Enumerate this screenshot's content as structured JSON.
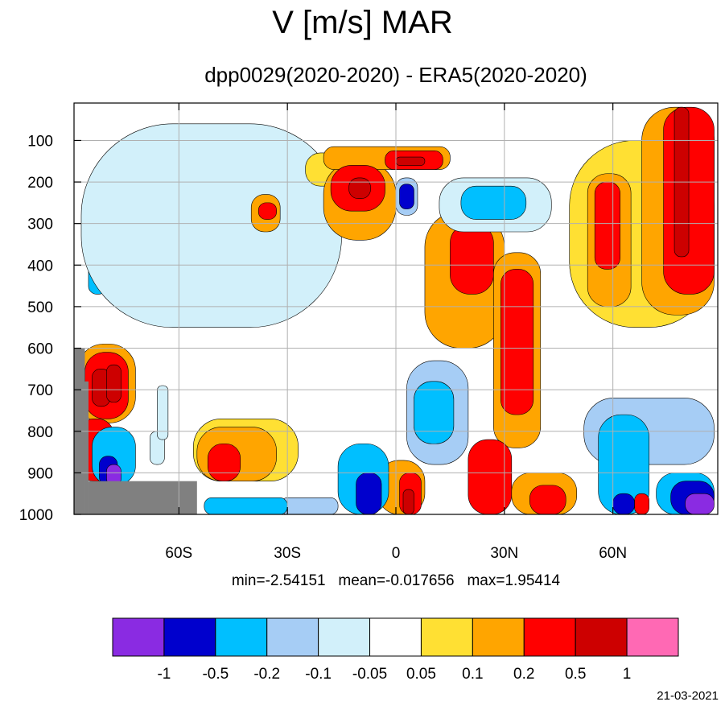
{
  "chart_data": {
    "type": "heatmap",
    "title": "V [m/s] MAR",
    "subtitle": "dpp0029(2020-2020) - ERA5(2020-2020)",
    "x_ticks": [
      "60S",
      "30S",
      "0",
      "30N",
      "60N"
    ],
    "x_tick_values": [
      -60,
      -30,
      0,
      30,
      60
    ],
    "y_ticks": [
      "100",
      "200",
      "300",
      "400",
      "500",
      "600",
      "700",
      "800",
      "900",
      "1000"
    ],
    "y_tick_values": [
      100,
      200,
      300,
      400,
      500,
      600,
      700,
      800,
      900,
      1000
    ],
    "xlim": [
      -89,
      89
    ],
    "ylim": [
      1000,
      10
    ],
    "grid": true,
    "stats": {
      "min": "-2.54151",
      "mean": "-0.017656",
      "max": "1.95414"
    },
    "stats_text": "min=-2.54151   mean=-0.017656   max=1.95414",
    "colorbar": {
      "levels": [
        "-1",
        "-0.5",
        "-0.2",
        "-0.1",
        "-0.05",
        "0.05",
        "0.1",
        "0.2",
        "0.5",
        "1"
      ],
      "colors": [
        "#8a2be2",
        "#0000cd",
        "#00bfff",
        "#a6cdf5",
        "#d2f0fa",
        "#ffffff",
        "#ffe033",
        "#ffa500",
        "#ff0000",
        "#cd0000",
        "#ff69b4"
      ]
    },
    "missing_color": "#808080",
    "cells": [
      {
        "lat": [
          -85,
          -80
        ],
        "p": [
          270,
          470
        ],
        "level": -0.2
      },
      {
        "lat": [
          -68,
          -50
        ],
        "p": [
          215,
          285
        ],
        "level": -0.2
      },
      {
        "lat": [
          -78,
          -40
        ],
        "p": [
          170,
          370
        ],
        "level": -0.1
      },
      {
        "lat": [
          -87,
          -15
        ],
        "p": [
          60,
          550
        ],
        "level": -0.05
      },
      {
        "lat": [
          -40,
          -32
        ],
        "p": [
          230,
          320
        ],
        "level": 0.1
      },
      {
        "lat": [
          -38,
          -33
        ],
        "p": [
          250,
          290
        ],
        "level": 0.2
      },
      {
        "lat": [
          -25,
          -15
        ],
        "p": [
          130,
          210
        ],
        "level": 0.05
      },
      {
        "lat": [
          -20,
          0
        ],
        "p": [
          150,
          340
        ],
        "level": 0.1
      },
      {
        "lat": [
          -20,
          15
        ],
        "p": [
          115,
          170
        ],
        "level": 0.1
      },
      {
        "lat": [
          -18,
          -3
        ],
        "p": [
          160,
          270
        ],
        "level": 0.2
      },
      {
        "lat": [
          -13,
          -7
        ],
        "p": [
          190,
          240
        ],
        "level": 0.5
      },
      {
        "lat": [
          -3,
          13
        ],
        "p": [
          125,
          170
        ],
        "level": 0.2
      },
      {
        "lat": [
          0,
          8
        ],
        "p": [
          140,
          160
        ],
        "level": 0.5
      },
      {
        "lat": [
          0,
          6
        ],
        "p": [
          190,
          280
        ],
        "level": -0.1
      },
      {
        "lat": [
          1,
          5
        ],
        "p": [
          205,
          265
        ],
        "level": -0.5
      },
      {
        "lat": [
          8,
          30
        ],
        "p": [
          270,
          600
        ],
        "level": 0.1
      },
      {
        "lat": [
          15,
          27
        ],
        "p": [
          300,
          470
        ],
        "level": 0.2
      },
      {
        "lat": [
          27,
          40
        ],
        "p": [
          370,
          840
        ],
        "level": 0.1
      },
      {
        "lat": [
          29,
          38
        ],
        "p": [
          410,
          760
        ],
        "level": 0.2
      },
      {
        "lat": [
          12,
          43
        ],
        "p": [
          190,
          320
        ],
        "level": -0.05
      },
      {
        "lat": [
          18,
          36
        ],
        "p": [
          210,
          290
        ],
        "level": -0.2
      },
      {
        "lat": [
          48,
          88
        ],
        "p": [
          100,
          550
        ],
        "level": 0.05
      },
      {
        "lat": [
          53,
          65
        ],
        "p": [
          180,
          500
        ],
        "level": 0.1
      },
      {
        "lat": [
          55,
          62
        ],
        "p": [
          200,
          410
        ],
        "level": 0.2
      },
      {
        "lat": [
          68,
          88
        ],
        "p": [
          20,
          520
        ],
        "level": 0.1
      },
      {
        "lat": [
          74,
          88
        ],
        "p": [
          20,
          470
        ],
        "level": 0.2
      },
      {
        "lat": [
          77,
          81
        ],
        "p": [
          20,
          380
        ],
        "level": 0.5
      },
      {
        "lat": [
          3,
          20
        ],
        "p": [
          630,
          880
        ],
        "level": -0.1
      },
      {
        "lat": [
          5,
          16
        ],
        "p": [
          680,
          830
        ],
        "level": -0.2
      },
      {
        "lat": [
          20,
          32
        ],
        "p": [
          820,
          1000
        ],
        "level": 0.2
      },
      {
        "lat": [
          32,
          50
        ],
        "p": [
          900,
          1000
        ],
        "level": 0.1
      },
      {
        "lat": [
          37,
          47
        ],
        "p": [
          930,
          1000
        ],
        "level": 0.2
      },
      {
        "lat": [
          -5,
          8
        ],
        "p": [
          870,
          1000
        ],
        "level": 0.1
      },
      {
        "lat": [
          1,
          7
        ],
        "p": [
          900,
          1000
        ],
        "level": 0.2
      },
      {
        "lat": [
          2,
          5
        ],
        "p": [
          940,
          1000
        ],
        "level": 0.5
      },
      {
        "lat": [
          -16,
          -2
        ],
        "p": [
          830,
          1000
        ],
        "level": -0.2
      },
      {
        "lat": [
          -11,
          -4
        ],
        "p": [
          900,
          1000
        ],
        "level": -0.5
      },
      {
        "lat": [
          -32,
          -16
        ],
        "p": [
          960,
          1000
        ],
        "level": -0.1
      },
      {
        "lat": [
          -56,
          -27
        ],
        "p": [
          770,
          920
        ],
        "level": 0.05
      },
      {
        "lat": [
          -55,
          -33
        ],
        "p": [
          790,
          920
        ],
        "level": 0.1
      },
      {
        "lat": [
          -52,
          -43
        ],
        "p": [
          830,
          920
        ],
        "level": 0.2
      },
      {
        "lat": [
          52,
          88
        ],
        "p": [
          720,
          880
        ],
        "level": -0.1
      },
      {
        "lat": [
          56,
          70
        ],
        "p": [
          760,
          1000
        ],
        "level": -0.2
      },
      {
        "lat": [
          60,
          66
        ],
        "p": [
          950,
          1000
        ],
        "level": -0.5
      },
      {
        "lat": [
          66,
          70
        ],
        "p": [
          950,
          1000
        ],
        "level": 0.2
      },
      {
        "lat": [
          72,
          88
        ],
        "p": [
          900,
          1000
        ],
        "level": -0.2
      },
      {
        "lat": [
          76,
          88
        ],
        "p": [
          920,
          1000
        ],
        "level": -0.5
      },
      {
        "lat": [
          80,
          88
        ],
        "p": [
          950,
          1000
        ],
        "level": -1
      },
      {
        "lat": [
          -88,
          -72
        ],
        "p": [
          590,
          780
        ],
        "level": 0.1
      },
      {
        "lat": [
          -86,
          -74
        ],
        "p": [
          610,
          770
        ],
        "level": 0.2
      },
      {
        "lat": [
          -84,
          -79
        ],
        "p": [
          650,
          740
        ],
        "level": 0.5
      },
      {
        "lat": [
          -80,
          -76
        ],
        "p": [
          640,
          730
        ],
        "level": 0.5
      },
      {
        "lat": [
          -88,
          -78
        ],
        "p": [
          770,
          920
        ],
        "level": 0.2
      },
      {
        "lat": [
          -84,
          -72
        ],
        "p": [
          790,
          930
        ],
        "level": -0.2
      },
      {
        "lat": [
          -82,
          -77
        ],
        "p": [
          860,
          930
        ],
        "level": -0.5
      },
      {
        "lat": [
          -80,
          -76
        ],
        "p": [
          880,
          930
        ],
        "level": -1
      },
      {
        "lat": [
          -68,
          -64
        ],
        "p": [
          800,
          880
        ],
        "level": -0.05
      },
      {
        "lat": [
          -66,
          -63
        ],
        "p": [
          690,
          820
        ],
        "level": -0.05
      },
      {
        "lat": [
          -53,
          -30
        ],
        "p": [
          960,
          1000
        ],
        "level": -0.2
      }
    ],
    "missing_regions": [
      {
        "lat": [
          -89,
          -86
        ],
        "p": [
          600,
          1000
        ]
      },
      {
        "lat": [
          -86,
          -85
        ],
        "p": [
          680,
          1000
        ]
      },
      {
        "lat": [
          -85,
          -55
        ],
        "p": [
          920,
          1000
        ]
      }
    ]
  },
  "datestamp": "21-03-2021"
}
